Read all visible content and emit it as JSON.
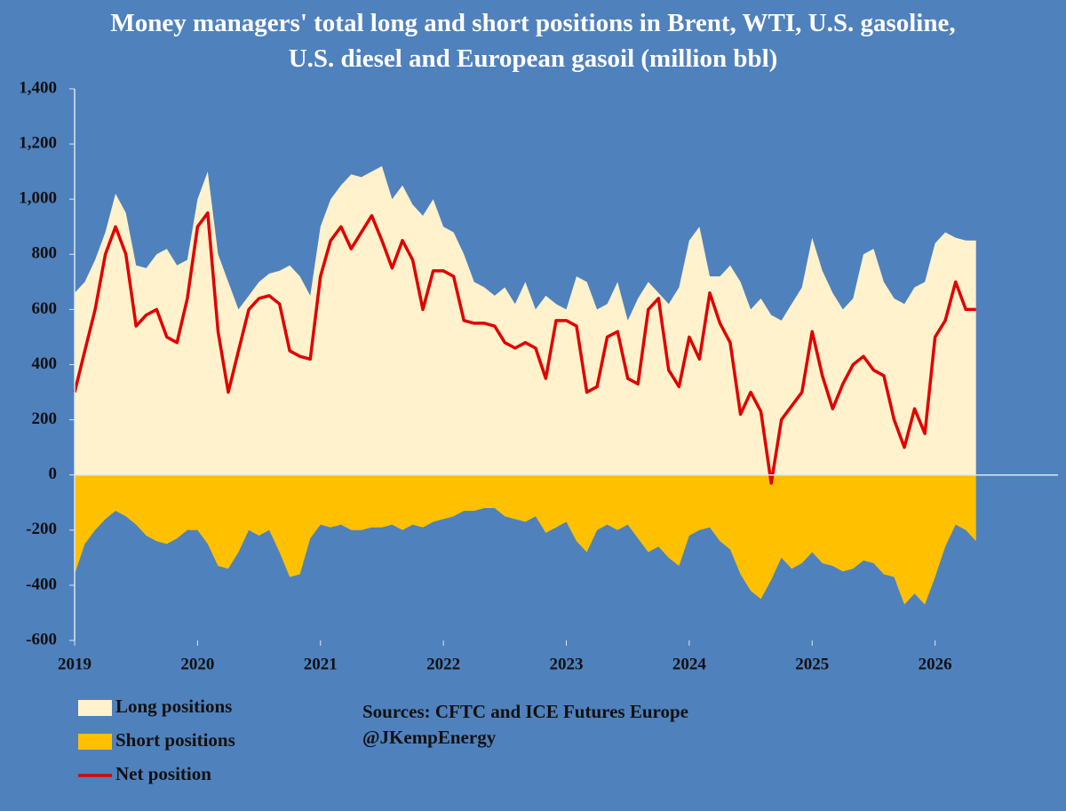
{
  "chart_data": {
    "type": "area",
    "title": "Money managers' total long and short positions in Brent, WTI, U.S. gasoline, U.S. diesel and European gasoil  (million bbl)",
    "x": [
      2019,
      2019.083,
      2019.167,
      2019.25,
      2019.333,
      2019.417,
      2019.5,
      2019.583,
      2019.667,
      2019.75,
      2019.833,
      2019.917,
      2020,
      2020.083,
      2020.167,
      2020.25,
      2020.333,
      2020.417,
      2020.5,
      2020.583,
      2020.667,
      2020.75,
      2020.833,
      2020.917,
      2021,
      2021.083,
      2021.167,
      2021.25,
      2021.333,
      2021.417,
      2021.5,
      2021.583,
      2021.667,
      2021.75,
      2021.833,
      2021.917,
      2022,
      2022.083,
      2022.167,
      2022.25,
      2022.333,
      2022.417,
      2022.5,
      2022.583,
      2022.667,
      2022.75,
      2022.833,
      2022.917,
      2023,
      2023.083,
      2023.167,
      2023.25,
      2023.333,
      2023.417,
      2023.5,
      2023.583,
      2023.667,
      2023.75,
      2023.833,
      2023.917,
      2024,
      2024.083,
      2024.167,
      2024.25,
      2024.333,
      2024.417,
      2024.5,
      2024.583,
      2024.667,
      2024.75,
      2024.833,
      2024.917,
      2025,
      2025.083,
      2025.167,
      2025.25,
      2025.333,
      2025.417,
      2025.5,
      2025.583,
      2025.667,
      2025.75,
      2025.833,
      2025.917,
      2026,
      2026.083,
      2026.167,
      2026.25,
      2026.333
    ],
    "series": [
      {
        "name": "Long positions",
        "type": "area",
        "color": "#fff2cc",
        "values": [
          660,
          700,
          780,
          880,
          1020,
          950,
          760,
          750,
          800,
          820,
          760,
          780,
          1000,
          1100,
          800,
          700,
          600,
          650,
          700,
          730,
          740,
          760,
          720,
          650,
          900,
          1000,
          1050,
          1090,
          1080,
          1100,
          1120,
          1000,
          1050,
          980,
          940,
          1000,
          900,
          880,
          800,
          700,
          680,
          650,
          680,
          620,
          700,
          600,
          650,
          620,
          600,
          720,
          700,
          600,
          620,
          700,
          560,
          640,
          700,
          660,
          620,
          680,
          850,
          900,
          720,
          720,
          760,
          700,
          600,
          640,
          580,
          560,
          620,
          680,
          860,
          740,
          660,
          600,
          640,
          800,
          820,
          700,
          640,
          620,
          680,
          700,
          840,
          880,
          860,
          850,
          850
        ]
      },
      {
        "name": "Short positions",
        "type": "area",
        "color": "#ffc000",
        "values": [
          -360,
          -250,
          -200,
          -160,
          -130,
          -150,
          -180,
          -220,
          -240,
          -250,
          -230,
          -200,
          -200,
          -250,
          -330,
          -340,
          -280,
          -200,
          -220,
          -200,
          -280,
          -370,
          -360,
          -230,
          -180,
          -190,
          -180,
          -200,
          -200,
          -190,
          -190,
          -180,
          -200,
          -180,
          -190,
          -170,
          -160,
          -150,
          -130,
          -130,
          -120,
          -120,
          -150,
          -160,
          -170,
          -150,
          -210,
          -190,
          -170,
          -240,
          -280,
          -200,
          -180,
          -200,
          -180,
          -230,
          -280,
          -260,
          -300,
          -330,
          -220,
          -200,
          -190,
          -240,
          -270,
          -360,
          -420,
          -450,
          -380,
          -300,
          -340,
          -320,
          -280,
          -320,
          -330,
          -350,
          -340,
          -310,
          -320,
          -360,
          -370,
          -470,
          -430,
          -470,
          -370,
          -260,
          -180,
          -200,
          -240
        ]
      },
      {
        "name": "Net position",
        "type": "line",
        "color": "#e00000",
        "values": [
          300,
          450,
          600,
          800,
          900,
          800,
          540,
          580,
          600,
          500,
          480,
          640,
          900,
          950,
          520,
          300,
          450,
          600,
          640,
          650,
          620,
          450,
          430,
          420,
          720,
          850,
          900,
          820,
          880,
          940,
          850,
          750,
          850,
          780,
          600,
          740,
          740,
          720,
          560,
          550,
          550,
          540,
          480,
          460,
          480,
          460,
          350,
          560,
          560,
          540,
          300,
          320,
          500,
          520,
          350,
          330,
          600,
          640,
          380,
          320,
          500,
          420,
          660,
          550,
          480,
          220,
          300,
          230,
          -30,
          200,
          250,
          300,
          520,
          360,
          240,
          330,
          400,
          430,
          380,
          360,
          200,
          100,
          240,
          150,
          500,
          560,
          700,
          600,
          600
        ]
      }
    ],
    "xlim": [
      2019,
      2027
    ],
    "xticks": [
      2019,
      2020,
      2021,
      2022,
      2023,
      2024,
      2025,
      2026
    ],
    "ylim": [
      -600,
      1400
    ],
    "yticks": [
      {
        "value": 1400,
        "label": "1,400"
      },
      {
        "value": 1200,
        "label": "1,200"
      },
      {
        "value": 1000,
        "label": "1,000"
      },
      800,
      600,
      400,
      200,
      0,
      -200,
      -400,
      -600
    ],
    "sources": [
      "Sources: CFTC and ICE Futures Europe",
      "@JKempEnergy"
    ]
  }
}
